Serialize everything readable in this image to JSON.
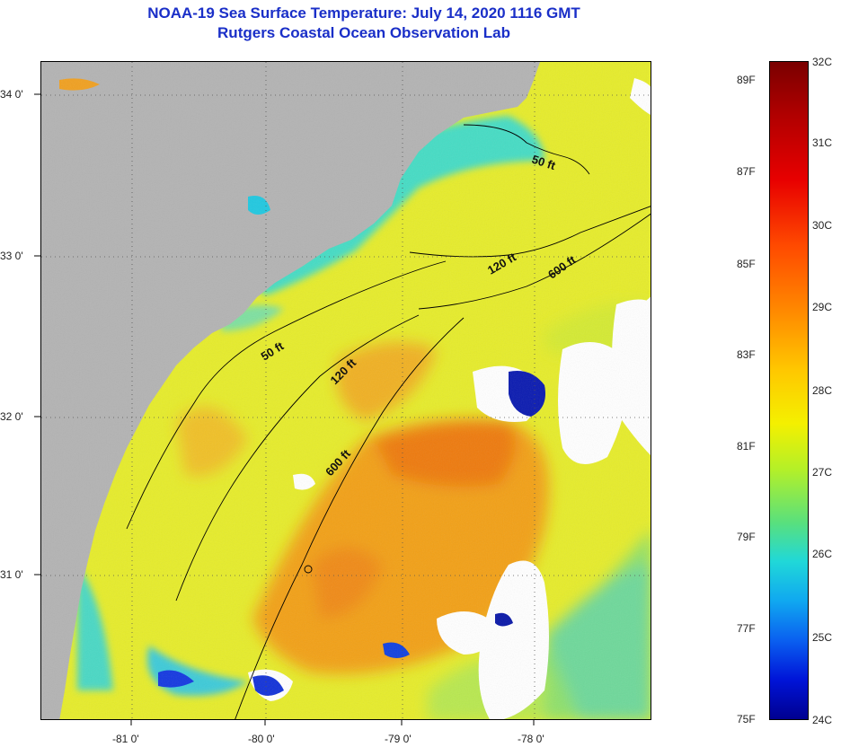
{
  "header": {
    "title_line1": "NOAA-19 Sea Surface Temperature:  July 14, 2020 1116 GMT",
    "title_line2": "Rutgers Coastal Ocean Observation Lab"
  },
  "map": {
    "latitude_labels": [
      "34 0'",
      "33 0'",
      "32 0'",
      "31 0'"
    ],
    "longitude_labels": [
      "-81 0'",
      "-80 0'",
      "-79 0'",
      "-78 0'"
    ],
    "contour_labels": [
      "50 ft",
      "120 ft",
      "600 ft",
      "50 ft",
      "120 ft",
      "600 ft"
    ],
    "colors": {
      "land": "#b3b3b3",
      "cloud": "#ffffff",
      "water_yellow": "#e8ee28",
      "water_orange": "#f09a10",
      "water_cyan": "#2cd8c8",
      "water_green": "#8ee06a"
    }
  },
  "colorbar": {
    "fahrenheit_labels": [
      "89F",
      "87F",
      "85F",
      "83F",
      "81F",
      "79F",
      "77F",
      "75F"
    ],
    "celsius_labels": [
      "32C",
      "31C",
      "30C",
      "29C",
      "28C",
      "27C",
      "26C",
      "25C",
      "24C"
    ]
  }
}
